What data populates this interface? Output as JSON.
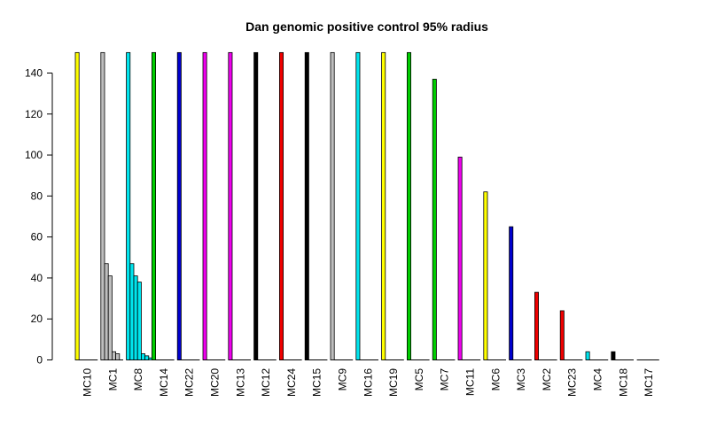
{
  "chart_data": {
    "type": "bar",
    "title": "Dan genomic positive control 95% radius",
    "xlabel": "",
    "ylabel": "",
    "ylim": [
      0,
      150
    ],
    "yticks": [
      0,
      20,
      40,
      60,
      80,
      100,
      120,
      140
    ],
    "grid": false,
    "legend": "none",
    "groups": [
      {
        "label": "MC10",
        "color": "#ffff00",
        "values": [
          150
        ]
      },
      {
        "label": "MC1",
        "color": "#bebebe",
        "values": [
          150,
          47,
          41,
          4,
          3
        ]
      },
      {
        "label": "MC8",
        "color": "#00e5ee",
        "values": [
          150,
          47,
          41,
          38,
          3,
          2,
          1
        ]
      },
      {
        "label": "MC14",
        "color": "#00cd00",
        "values": [
          150
        ]
      },
      {
        "label": "MC22",
        "color": "#0000cd",
        "values": [
          150
        ]
      },
      {
        "label": "MC20",
        "color": "#ee00ee",
        "values": [
          150
        ]
      },
      {
        "label": "MC13",
        "color": "#ee00ee",
        "values": [
          150
        ]
      },
      {
        "label": "MC12",
        "color": "#000000",
        "values": [
          150
        ]
      },
      {
        "label": "MC24",
        "color": "#ee0000",
        "values": [
          150
        ]
      },
      {
        "label": "MC15",
        "color": "#000000",
        "values": [
          150
        ]
      },
      {
        "label": "MC9",
        "color": "#bebebe",
        "values": [
          150
        ]
      },
      {
        "label": "MC16",
        "color": "#00e5ee",
        "values": [
          150
        ]
      },
      {
        "label": "MC19",
        "color": "#ffff00",
        "values": [
          150
        ]
      },
      {
        "label": "MC5",
        "color": "#00cd00",
        "values": [
          150
        ]
      },
      {
        "label": "MC7",
        "color": "#00cd00",
        "values": [
          137
        ]
      },
      {
        "label": "MC11",
        "color": "#ee00ee",
        "values": [
          99
        ]
      },
      {
        "label": "MC6",
        "color": "#ffff00",
        "values": [
          82
        ]
      },
      {
        "label": "MC3",
        "color": "#0000cd",
        "values": [
          65
        ]
      },
      {
        "label": "MC2",
        "color": "#ee0000",
        "values": [
          33
        ]
      },
      {
        "label": "MC23",
        "color": "#ee0000",
        "values": [
          24
        ]
      },
      {
        "label": "MC4",
        "color": "#00e5ee",
        "values": [
          4
        ]
      },
      {
        "label": "MC18",
        "color": "#000000",
        "values": [
          4
        ]
      },
      {
        "label": "MC17",
        "color": "#000000",
        "values": [
          0
        ]
      }
    ]
  }
}
